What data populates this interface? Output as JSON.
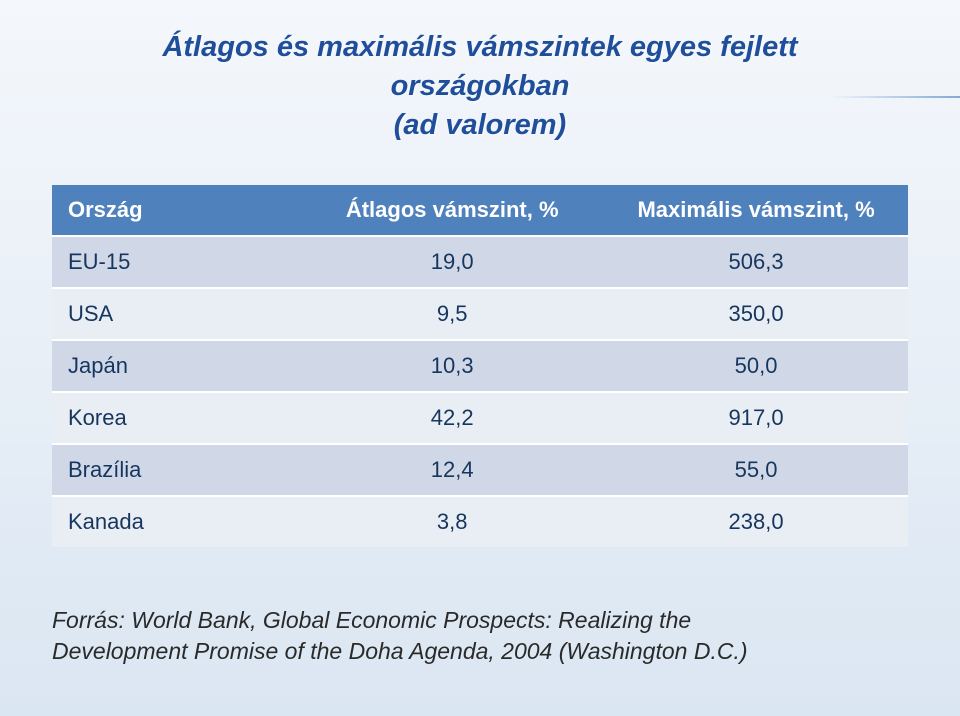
{
  "title_line1": "Átlagos és maximális vámszintek egyes fejlett országokban",
  "title_line2": "(ad valorem)",
  "table": {
    "columns": [
      "Ország",
      "Átlagos vámszint, %",
      "Maximális vámszint, %"
    ],
    "col_widths_pct": [
      29,
      35.5,
      35.5
    ],
    "header_bg": "#4f81bd",
    "header_fg": "#ffffff",
    "row_bg_odd": "#d0d8e8",
    "row_bg_even": "#e9edf4",
    "cell_fg": "#17365d",
    "font_size_pt": 22,
    "rows": [
      {
        "label": "EU-15",
        "avg": "19,0",
        "max": "506,3"
      },
      {
        "label": "USA",
        "avg": "9,5",
        "max": "350,0"
      },
      {
        "label": "Japán",
        "avg": "10,3",
        "max": "50,0"
      },
      {
        "label": "Korea",
        "avg": "42,2",
        "max": "917,0"
      },
      {
        "label": "Brazília",
        "avg": "12,4",
        "max": "55,0"
      },
      {
        "label": "Kanada",
        "avg": "3,8",
        "max": "238,0"
      }
    ]
  },
  "source": "Forrás: World Bank, Global Economic Prospects: Realizing the Development Promise of the Doha Agenda, 2004 (Washington D.C.)",
  "colors": {
    "title": "#1f4e9b",
    "bg_top": "#f4f7fb",
    "bg_bottom": "#dae6f2",
    "source_text": "#2a2a2a"
  }
}
